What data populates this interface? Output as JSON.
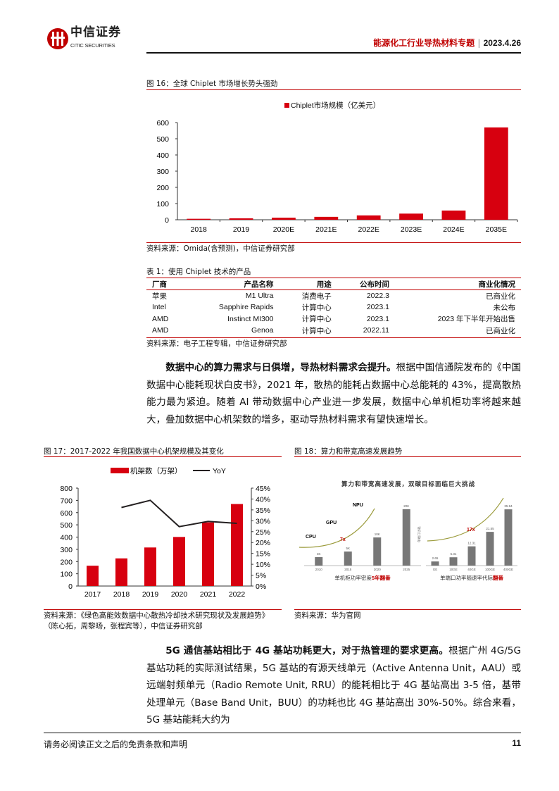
{
  "header": {
    "logo_cn": "中信证券",
    "logo_en": "CITIC SECURITIES",
    "report_title": "能源化工行业导热材料专题",
    "separator": "|",
    "date": "2023.4.26"
  },
  "fig16": {
    "title": "图 16：全球 Chiplet 市场增长势头强劲",
    "source": "资料来源：Omida(含预测)，中信证券研究部"
  },
  "table1": {
    "title": "表 1：使用 Chiplet 技术的产品",
    "headers": [
      "厂商",
      "产品名称",
      "用途",
      "公布时间",
      "商业化情况"
    ],
    "rows": [
      [
        "苹果",
        "M1 Ultra",
        "消费电子",
        "2022.3",
        "已商业化"
      ],
      [
        "Intel",
        "Sapphire Rapids",
        "计算中心",
        "2023.1",
        "未公布"
      ],
      [
        "AMD",
        "Instinct MI300",
        "计算中心",
        "2023.1",
        "2023 年下半年开始出售"
      ],
      [
        "AMD",
        "Genoa",
        "计算中心",
        "2022.11",
        "已商业化"
      ]
    ],
    "source": "资料来源：电子工程专辑，中信证券研究部"
  },
  "para1": {
    "bold": "数据中心的算力需求与日俱增，导热材料需求会提升。",
    "text": "根据中国信通院发布的《中国数据中心能耗现状白皮书》，2021 年，散热的能耗占数据中心总能耗的 43%，提高散热能力最为紧迫。随着 AI 带动数据中心产业进一步发展，数据中心单机柜功率将越来越大，叠加数据中心机架数的增多，驱动导热材料需求有望快速增长。"
  },
  "fig17": {
    "title": "图 17：2017-2022 年我国数据中心机架规模及其变化",
    "source_line1": "资料来源：《绿色高能效数据中心散热冷却技术研究现状及发展趋势》",
    "source_line2": "（陈心拓，周黎旸，张程宾等），中信证券研究部"
  },
  "fig18": {
    "title": "图 18：算力和带宽高速发展趋势",
    "source": "资料来源：华为官网"
  },
  "para2": {
    "bold": "5G 通信基站相比于 4G 基站功耗更大，对于热管理的要求更高。",
    "text": "根据广州 4G/5G 基站功耗的实际测试结果，5G 基站的有源天线单元（Active Antenna Unit，AAU）或远端射频单元（Radio Remote Unit, RRU）的能耗相比于 4G 基站高出 3-5 倍，基带处理单元（Base Band Unit，BUU）的功耗也比 4G 基站高出 30%-50%。综合来看，5G 基站能耗大约为"
  },
  "footer": {
    "disclaimer": "请务必阅读正文之后的免责条款和声明",
    "page": "11"
  },
  "colors": {
    "brand_red": "#c00000",
    "bar_red": "#d7000f",
    "line": "#231f20"
  },
  "chart_data": [
    {
      "id": "fig16",
      "type": "bar",
      "categories": [
        "2018",
        "2019",
        "2020E",
        "2021E",
        "2022E",
        "2023E",
        "2024E",
        "2035E"
      ],
      "series": [
        {
          "name": "Chiplet市场规模（亿美元）",
          "values": [
            6,
            9,
            13,
            18,
            27,
            38,
            57,
            570
          ]
        }
      ],
      "ylim": [
        0,
        600
      ],
      "yticks": [
        0,
        100,
        200,
        300,
        400,
        500,
        600
      ],
      "legend": "top-center",
      "grid": false
    },
    {
      "id": "fig17",
      "type": "bar+line",
      "categories": [
        "2017",
        "2018",
        "2019",
        "2020",
        "2021",
        "2022"
      ],
      "series": [
        {
          "name": "机架数（万架）",
          "type": "bar",
          "axis": "left",
          "values": [
            166,
            226,
            315,
            401,
            520,
            670
          ]
        },
        {
          "name": "YoY",
          "type": "line",
          "axis": "right",
          "values": [
            null,
            36.1,
            39.4,
            27.3,
            29.7,
            28.8
          ]
        }
      ],
      "ylim": [
        0,
        800
      ],
      "yticks": [
        0,
        100,
        200,
        300,
        400,
        500,
        600,
        700,
        800
      ],
      "y2lim": [
        0,
        45
      ],
      "y2ticks": [
        "0%",
        "5%",
        "10%",
        "15%",
        "20%",
        "25%",
        "30%",
        "35%",
        "40%",
        "45%"
      ],
      "legend": "top-center",
      "grid": false
    },
    {
      "id": "fig18",
      "type": "bar",
      "title": "算力和带宽高速发展，双碳目标面临巨大挑战",
      "panels": [
        {
          "categories": [
            "2010",
            "2015",
            "2020",
            "2025"
          ],
          "values": [
            3,
            5,
            10,
            20
          ],
          "labels": [
            "3K",
            "5K",
            "10K",
            "20K"
          ],
          "annotations": [
            "CPU",
            "GPU",
            "NPU",
            "7x"
          ],
          "caption": "单机柜功率密度",
          "caption_red": "5年翻番"
        },
        {
          "categories": [
            "GE",
            "10GE",
            "40GE",
            "100GE",
            "400GE"
          ],
          "values": [
            2.65,
            5.31,
            12.31,
            21.55,
            35.94
          ],
          "labels": [
            "2.65",
            "5.31",
            "12.31",
            "21.55",
            "35.94"
          ],
          "annotations": [
            "17x"
          ],
          "ylabel": "单端口功耗",
          "caption": "单端口功率随速率代际",
          "caption_red": "翻番"
        }
      ]
    }
  ]
}
